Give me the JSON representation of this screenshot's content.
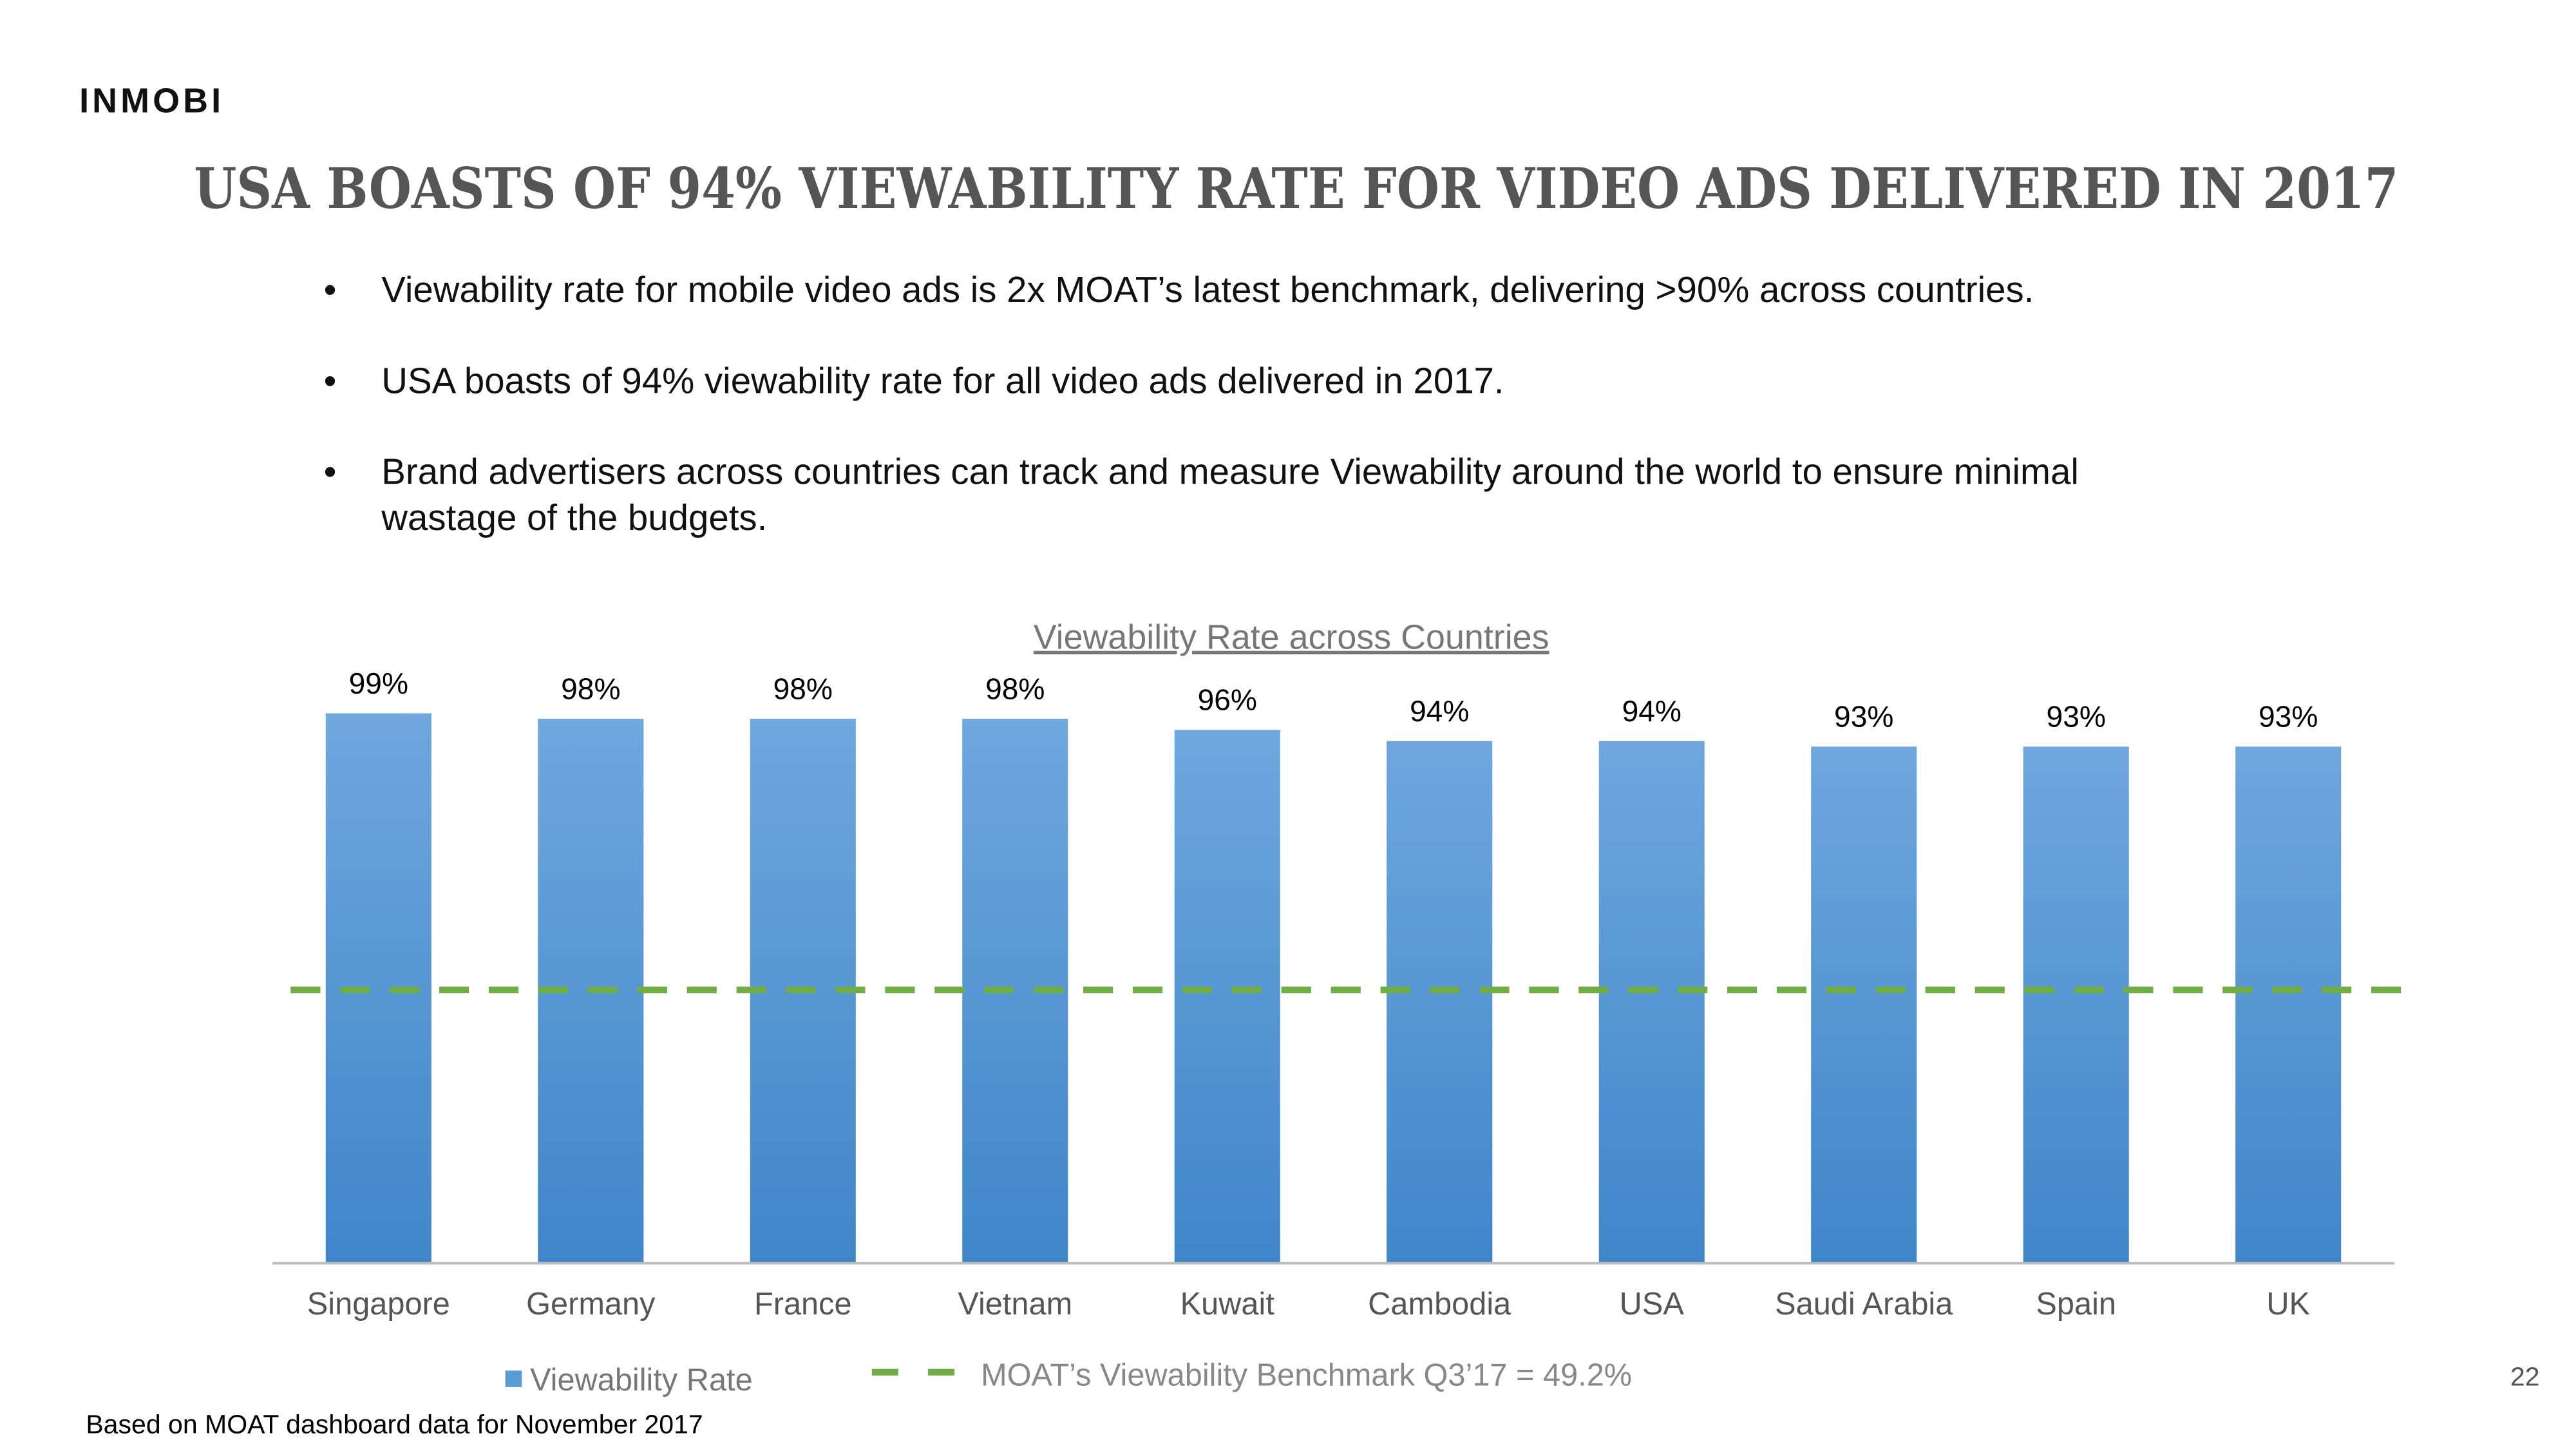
{
  "logo": "INMOBI",
  "title": "USA BOASTS OF 94% VIEWABILITY RATE FOR VIDEO ADS DELIVERED IN 2017",
  "bullets": [
    [
      "Viewability rate for mobile video ads is 2x MOAT’s latest benchmark, delivering >90% across countries."
    ],
    [
      "USA boasts of 94% viewability rate for all video ads delivered in 2017."
    ],
    [
      "Brand advertisers across countries can track and measure Viewability around the world to ensure minimal",
      "wastage of the budgets."
    ]
  ],
  "chart_data": {
    "type": "bar",
    "title": "Viewability Rate across Countries",
    "categories": [
      "Singapore",
      "Germany",
      "France",
      "Vietnam",
      "Kuwait",
      "Cambodia",
      "USA",
      "Saudi Arabia",
      "Spain",
      "UK"
    ],
    "series": [
      {
        "name": "Viewability Rate",
        "color": "#5b9bd5",
        "values": [
          99,
          98,
          98,
          98,
          96,
          94,
          94,
          93,
          93,
          93
        ],
        "value_labels": [
          "99%",
          "98%",
          "98%",
          "98%",
          "96%",
          "94%",
          "94%",
          "93%",
          "93%",
          "93%"
        ]
      }
    ],
    "benchmark": {
      "name": "MOAT’s Viewability Benchmark Q3’17 = 49.2%",
      "value": 49.2,
      "color": "#70ad47"
    },
    "ylim": [
      0,
      100
    ]
  },
  "footnote": "Based on MOAT dashboard data for November 2017",
  "page_number": "22"
}
